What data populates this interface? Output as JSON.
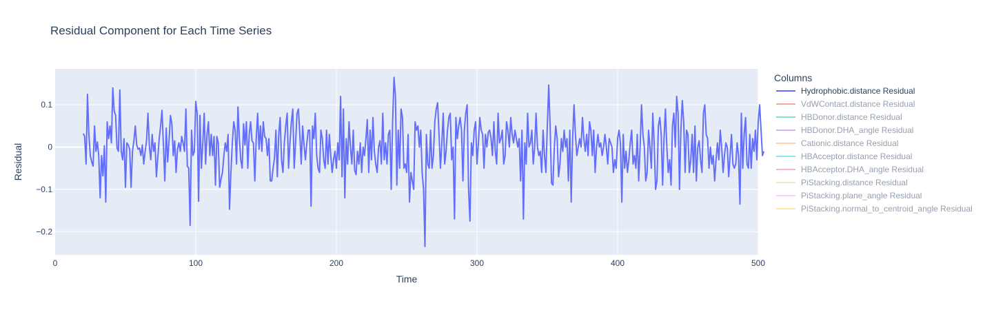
{
  "chart_data": {
    "type": "line",
    "title": "Residual Component for Each Time Series",
    "xlabel": "Time",
    "ylabel": "Residual",
    "xlim": [
      0,
      500
    ],
    "ylim": [
      -0.255,
      0.185
    ],
    "x_ticks": [
      0,
      100,
      200,
      300,
      400,
      500
    ],
    "y_ticks": [
      -0.2,
      -0.1,
      0,
      0.1
    ],
    "y_tick_labels": [
      "−0.2",
      "−0.1",
      "0",
      "0.1"
    ],
    "grid": true,
    "legend": {
      "title": "Columns",
      "position": "right"
    },
    "colors": {
      "plot_bg": "#e5ecf6",
      "grid": "#ffffff",
      "text": "#2a3f5f"
    },
    "series": [
      {
        "name": "Hydrophobic.distance Residual",
        "color": "#636efa",
        "visible": true,
        "x_start": 20,
        "x_step": 1,
        "values": [
          0.032,
          0.025,
          -0.04,
          0.125,
          0.03,
          -0.02,
          -0.035,
          -0.045,
          0.05,
          -0.01,
          0.012,
          -0.02,
          -0.12,
          -0.02,
          -0.068,
          0.003,
          -0.13,
          0.06,
          0.02,
          0.05,
          0.01,
          0.14,
          0.085,
          0.075,
          -0.002,
          -0.01,
          0.135,
          -0.01,
          -0.03,
          0.02,
          -0.095,
          0.01,
          0.005,
          -0.005,
          -0.095,
          -0.01,
          0.015,
          0.05,
          0.005,
          -0.005,
          -0.002,
          -0.02,
          0.005,
          -0.04,
          -0.01,
          0.015,
          0.08,
          0.003,
          -0.03,
          0.03,
          -0.01,
          0.01,
          -0.07,
          -0.025,
          0.02,
          0.05,
          0.087,
          0.005,
          -0.08,
          0.045,
          -0.035,
          0.015,
          0.075,
          0.055,
          -0.02,
          0.015,
          -0.06,
          -0.005,
          0.01,
          -0.01,
          0.025,
          0.01,
          -0.01,
          0.09,
          -0.045,
          -0.05,
          -0.185,
          0.04,
          -0.02,
          -0.01,
          0.108,
          0.08,
          -0.128,
          0.075,
          -0.05,
          0.01,
          0.08,
          -0.04,
          0.03,
          0.06,
          -0.02,
          0.03,
          -0.02,
          0.025,
          -0.09,
          0.025,
          0.01,
          -0.095,
          -0.075,
          -0.06,
          -0.02,
          0.01,
          -0.01,
          0.03,
          -0.147,
          -0.06,
          0.01,
          0.06,
          0.04,
          -0.04,
          0.095,
          0.02,
          -0.03,
          -0.05,
          0.055,
          0.005,
          0.06,
          -0.05,
          0.03,
          0.06,
          0.015,
          0.01,
          -0.08,
          0.02,
          0.08,
          -0.005,
          0.05,
          -0.01,
          0.06,
          0.025,
          0.02,
          -0.02,
          0.02,
          -0.08,
          -0.08,
          -0.05,
          -0.025,
          0.04,
          -0.07,
          0.03,
          0.07,
          -0.03,
          -0.06,
          0.01,
          0.05,
          0.08,
          -0.05,
          0.01,
          0.06,
          0.09,
          -0.05,
          0.01,
          0.08,
          0.09,
          0.03,
          -0.04,
          0.05,
          0.005,
          -0.03,
          0.01,
          0.04,
          0.04,
          -0.14,
          0.05,
          0.02,
          0.08,
          -0.02,
          -0.05,
          -0.06,
          0.04,
          0.02,
          -0.03,
          -0.05,
          0.04,
          -0.04,
          0.03,
          -0.02,
          -0.06,
          -0.03,
          -0.01,
          -0.05,
          0.01,
          -0.03,
          0.12,
          -0.07,
          0.09,
          -0.12,
          0.02,
          -0.04,
          0.06,
          0.0,
          -0.04,
          0.04,
          -0.055,
          -0.065,
          -0.01,
          -0.04,
          0.01,
          -0.06,
          0.0,
          -0.02,
          0.02,
          0.065,
          -0.06,
          0.04,
          -0.03,
          0.07,
          -0.01,
          -0.04,
          -0.06,
          0.0,
          0.015,
          -0.04,
          0.08,
          -0.03,
          0.01,
          -0.04,
          0.03,
          0.04,
          -0.1,
          0.06,
          0.165,
          0.12,
          -0.09,
          0.04,
          -0.05,
          0.09,
          0.07,
          -0.05,
          -0.04,
          -0.06,
          0.03,
          -0.13,
          -0.06,
          -0.08,
          -0.1,
          0.06,
          0.04,
          0.05,
          0.0,
          0.04,
          -0.06,
          -0.1,
          -0.235,
          0.03,
          -0.04,
          -0.05,
          0.04,
          -0.05,
          -0.02,
          0.06,
          0.09,
          0.105,
          0.03,
          -0.05,
          0.01,
          0.08,
          -0.04,
          -0.01,
          0.04,
          0.07,
          0.08,
          -0.03,
          0.0,
          -0.17,
          0.07,
          0.02,
          0.05,
          0.07,
          0.04,
          -0.08,
          0.04,
          0.08,
          0.1,
          -0.1,
          -0.175,
          0.01,
          -0.02,
          0.04,
          0.06,
          -0.04,
          0.01,
          0.07,
          0.04,
          0.03,
          -0.05,
          0.03,
          0.0,
          0.035,
          0.04,
          0.02,
          -0.02,
          0.06,
          -0.01,
          -0.04,
          0.08,
          0.01,
          0.02,
          0.04,
          -0.04,
          -0.02,
          0.06,
          0.04,
          0.0,
          0.07,
          0.03,
          0.01,
          0.04,
          0.02,
          0.0,
          0.02,
          -0.08,
          0.04,
          -0.17,
          0.01,
          -0.04,
          0.08,
          0.0,
          0.01,
          0.04,
          -0.04,
          0.0,
          0.08,
          0.0,
          -0.02,
          -0.01,
          -0.06,
          0.04,
          -0.02,
          -0.06,
          0.05,
          0.147,
          0.05,
          -0.085,
          -0.09,
          0.0,
          0.05,
          0.02,
          -0.07,
          -0.04,
          0.02,
          -0.01,
          0.04,
          0.0,
          0.02,
          -0.08,
          0.04,
          -0.13,
          0.02,
          0.1,
          0.03,
          -0.02,
          0.0,
          0.02,
          0.0,
          0.07,
          0.02,
          -0.01,
          0.03,
          -0.02,
          0.06,
          0.04,
          -0.02,
          0.04,
          -0.06,
          0.0,
          0.03,
          0.0,
          0.01,
          -0.02,
          0.0,
          0.03,
          0.0,
          -0.04,
          0.02,
          0.01,
          0.0,
          -0.06,
          -0.03,
          -0.05,
          0.02,
          0.04,
          0.01,
          -0.13,
          0.03,
          -0.05,
          -0.01,
          -0.06,
          -0.03,
          0.01,
          0.04,
          -0.04,
          -0.02,
          -0.05,
          0.03,
          -0.08,
          0.0,
          0.1,
          0.03,
          0.0,
          -0.08,
          -0.06,
          0.04,
          0.0,
          -0.05,
          0.08,
          0.01,
          -0.1,
          -0.08,
          0.05,
          0.07,
          0.03,
          -0.09,
          0.02,
          0.09,
          0.0,
          -0.06,
          -0.03,
          -0.09,
          0.05,
          0.08,
          0.0,
          0.12,
          0.08,
          -0.1,
          0.04,
          0.11,
          0.06,
          -0.06,
          0.04,
          0.03,
          -0.06,
          -0.03,
          0.03,
          -0.06,
          0.05,
          -0.08,
          0.0,
          0.015,
          -0.03,
          -0.06,
          0.08,
          0.1,
          0.03,
          0.02,
          -0.05,
          0.0,
          -0.04,
          -0.02,
          -0.08,
          -0.03,
          0.01,
          -0.03,
          0.04,
          0.0,
          -0.06,
          -0.02,
          0.01,
          0.0,
          -0.07,
          -0.02,
          0.03,
          -0.04,
          -0.05,
          -0.04,
          0.01,
          -0.02,
          -0.135,
          0.08,
          -0.05,
          0.03,
          0.07,
          -0.04,
          -0.05,
          0.03,
          -0.05,
          0.02,
          -0.01,
          0.04,
          -0.03,
          0.06,
          0.1,
          0.04,
          -0.02,
          -0.01
        ]
      },
      {
        "name": "VdWContact.distance Residual",
        "color": "#EF553B",
        "visible": false
      },
      {
        "name": "HBDonor.distance Residual",
        "color": "#00cc96",
        "visible": false
      },
      {
        "name": "HBDonor.DHA_angle Residual",
        "color": "#ab63fa",
        "visible": false
      },
      {
        "name": "Cationic.distance Residual",
        "color": "#FFA15A",
        "visible": false
      },
      {
        "name": "HBAcceptor.distance Residual",
        "color": "#19d3f3",
        "visible": false
      },
      {
        "name": "HBAcceptor.DHA_angle Residual",
        "color": "#FF6692",
        "visible": false
      },
      {
        "name": "PiStacking.distance Residual",
        "color": "#B6E880",
        "visible": false
      },
      {
        "name": "PiStacking.plane_angle Residual",
        "color": "#FF97FF",
        "visible": false
      },
      {
        "name": "PiStacking.normal_to_centroid_angle Residual",
        "color": "#FECB52",
        "visible": false
      }
    ]
  }
}
